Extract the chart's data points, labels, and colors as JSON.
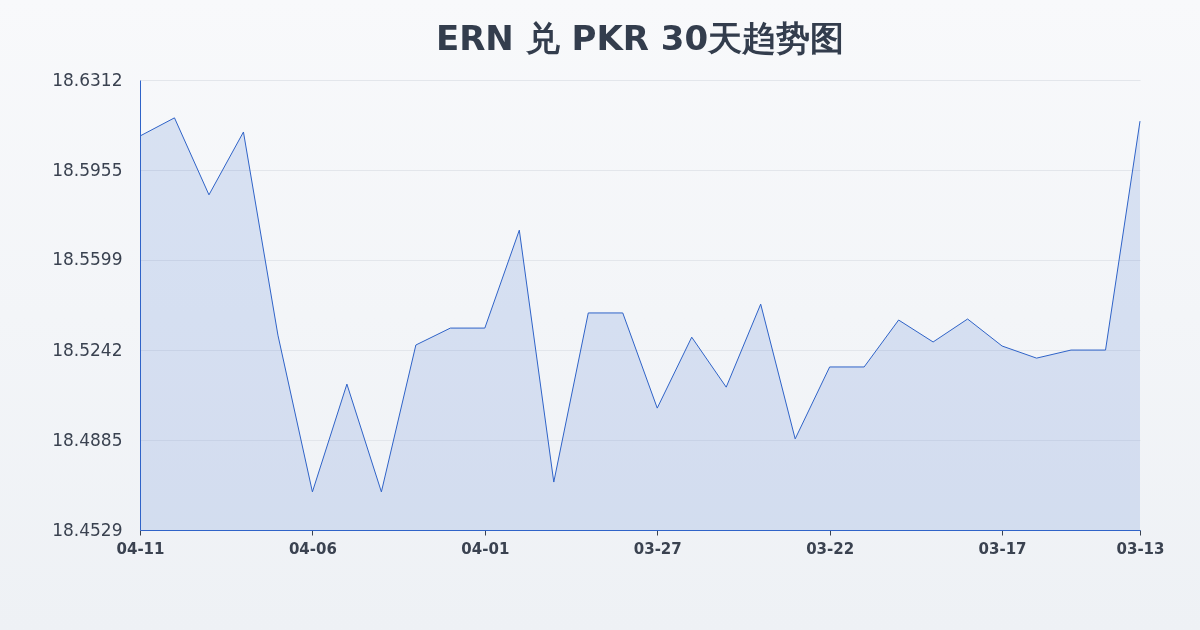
{
  "chart_data": {
    "type": "area",
    "title": "ERN 兑 PKR 30天趋势图",
    "categories": [
      "04-11",
      null,
      null,
      null,
      null,
      "04-06",
      null,
      null,
      null,
      null,
      "04-01",
      null,
      null,
      null,
      null,
      "03-27",
      null,
      null,
      null,
      null,
      "03-22",
      null,
      null,
      null,
      null,
      "03-17",
      null,
      null,
      null,
      "03-13"
    ],
    "series": [
      {
        "color": "#2f63c8",
        "values": [
          18.609,
          18.6162,
          18.5857,
          18.6106,
          18.5301,
          18.468,
          18.5107,
          18.468,
          18.5262,
          18.5329,
          18.5329,
          18.5717,
          18.4719,
          18.5389,
          18.5389,
          18.5012,
          18.5293,
          18.5095,
          18.5424,
          18.489,
          18.5175,
          18.5175,
          18.5361,
          18.5274,
          18.5365,
          18.5258,
          18.521,
          18.5242,
          18.5242,
          18.6149
        ]
      }
    ],
    "ylim": [
      18.4529,
      18.6312
    ],
    "yticks": [
      18.4529,
      18.4885,
      18.5242,
      18.5599,
      18.5955,
      18.6312
    ],
    "grid": "y"
  }
}
